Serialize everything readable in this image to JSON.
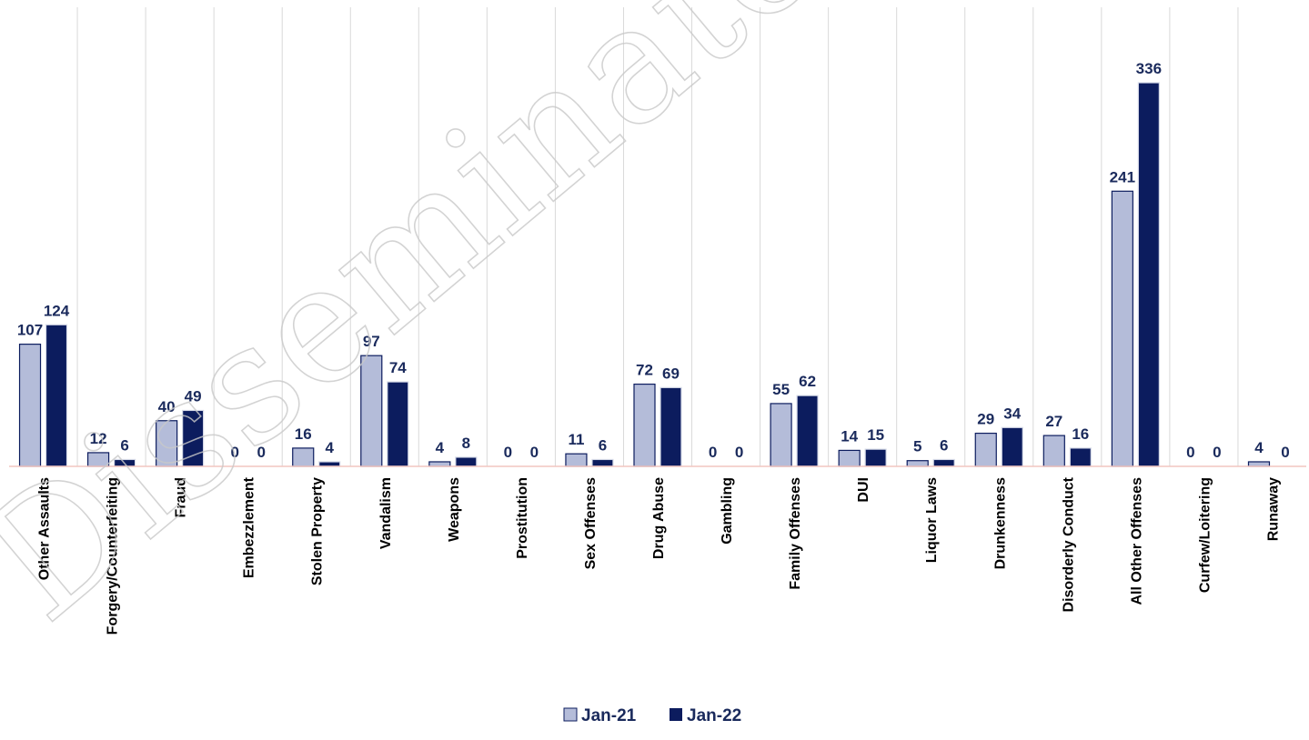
{
  "chart_data": {
    "type": "bar",
    "categories": [
      "Other Assaults",
      "Forgery/Counterfeiting",
      "Fraud",
      "Embezzlement",
      "Stolen Property",
      "Vandalism",
      "Weapons",
      "Prostitution",
      "Sex Offenses",
      "Drug Abuse",
      "Gambling",
      "Family Offenses",
      "DUI",
      "Liquor Laws",
      "Drunkenness",
      "Disorderly Conduct",
      "All Other Offenses",
      "Curfew/Loitering",
      "Runaway"
    ],
    "series": [
      {
        "name": "Jan-21",
        "values": [
          107,
          12,
          40,
          0,
          16,
          97,
          4,
          0,
          11,
          72,
          0,
          55,
          14,
          5,
          29,
          27,
          241,
          0,
          4
        ]
      },
      {
        "name": "Jan-22",
        "values": [
          124,
          6,
          49,
          0,
          4,
          74,
          8,
          0,
          6,
          69,
          0,
          62,
          15,
          6,
          34,
          16,
          336,
          0,
          0
        ]
      }
    ],
    "ylim": [
      0,
      400
    ],
    "grid": "vertical",
    "legend_position": "bottom",
    "data_labels": true,
    "colors": {
      "Jan-21": "#b4bcd9",
      "Jan-22": "#0c1c5e",
      "label": "#1a2a5c",
      "grid": "#d9d9d9",
      "baseline": "#f2c6c0"
    }
  },
  "watermark": "Disseminated Product"
}
